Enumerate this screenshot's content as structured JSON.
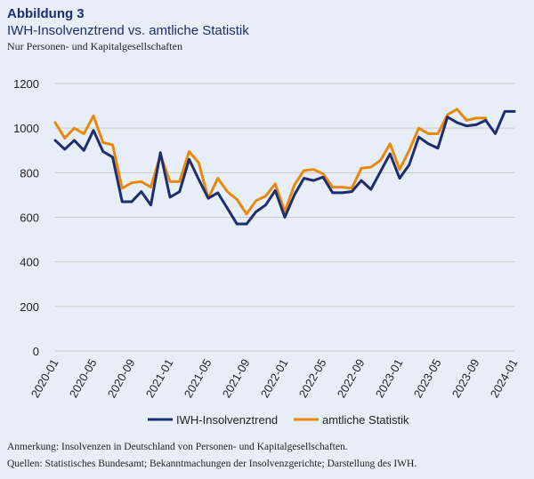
{
  "figure": {
    "label": "Abbildung 3",
    "title": "IWH-Insolvenztrend vs. amtliche Statistik",
    "subtitle": "Nur Personen- und Kapitalgesellschaften",
    "note": "Anmerkung: Insolvenzen in Deutschland von Personen- und Kapitalgesellschaften.",
    "source": "Quellen: Statistisches Bundesamt; Bekanntmachungen der Insolvenzgerichte; Darstellung des IWH."
  },
  "colors": {
    "background": "#e8eef8",
    "grid": "#c9c9c9",
    "iwh": "#1d2d6e",
    "official": "#e8890c"
  },
  "chart_data": {
    "type": "line",
    "ylim": [
      0,
      1200
    ],
    "yticks": [
      0,
      200,
      400,
      600,
      800,
      1000,
      1200
    ],
    "grid": true,
    "legend_position": "bottom",
    "xtick_labels": [
      "2020-01",
      "2020-05",
      "2020-09",
      "2021-01",
      "2021-05",
      "2021-09",
      "2022-01",
      "2022-05",
      "2022-09",
      "2023-01",
      "2023-05",
      "2023-09",
      "2024-01"
    ],
    "x": [
      "2020-01",
      "2020-02",
      "2020-03",
      "2020-04",
      "2020-05",
      "2020-06",
      "2020-07",
      "2020-08",
      "2020-09",
      "2020-10",
      "2020-11",
      "2020-12",
      "2021-01",
      "2021-02",
      "2021-03",
      "2021-04",
      "2021-05",
      "2021-06",
      "2021-07",
      "2021-08",
      "2021-09",
      "2021-10",
      "2021-11",
      "2021-12",
      "2022-01",
      "2022-02",
      "2022-03",
      "2022-04",
      "2022-05",
      "2022-06",
      "2022-07",
      "2022-08",
      "2022-09",
      "2022-10",
      "2022-11",
      "2022-12",
      "2023-01",
      "2023-02",
      "2023-03",
      "2023-04",
      "2023-05",
      "2023-06",
      "2023-07",
      "2023-08",
      "2023-09",
      "2023-10",
      "2023-11",
      "2023-12",
      "2024-01"
    ],
    "series": [
      {
        "name": "IWH-Insolvenztrend",
        "values": [
          945,
          905,
          945,
          900,
          990,
          895,
          870,
          670,
          670,
          715,
          655,
          890,
          690,
          715,
          860,
          770,
          685,
          710,
          640,
          570,
          570,
          625,
          655,
          720,
          600,
          700,
          775,
          765,
          780,
          710,
          710,
          715,
          765,
          725,
          805,
          885,
          775,
          835,
          960,
          930,
          910,
          1050,
          1025,
          1010,
          1015,
          1035,
          975,
          1075,
          1075
        ]
      },
      {
        "name": "amtliche Statistik",
        "values": [
          1025,
          955,
          1000,
          975,
          1055,
          935,
          925,
          730,
          755,
          760,
          735,
          880,
          760,
          760,
          895,
          845,
          685,
          775,
          715,
          680,
          615,
          675,
          695,
          750,
          625,
          745,
          810,
          815,
          795,
          735,
          735,
          730,
          820,
          825,
          855,
          930,
          815,
          900,
          1000,
          975,
          975,
          1060,
          1085,
          1035,
          1045,
          1045,
          null,
          null,
          null
        ]
      }
    ]
  }
}
